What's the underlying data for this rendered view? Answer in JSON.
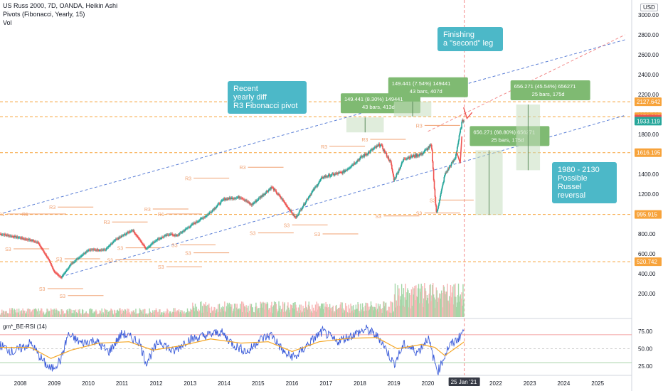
{
  "header": {
    "title": "US Russ 2000, 7D, OANDA, Heikin Ashi",
    "pivots": "Pivots (Fibonacci, Yearly, 15)",
    "vol": "Vol"
  },
  "currency": "USD",
  "callouts": {
    "recent": "Recent\nyearly diff\nR3 Fibonacci pivot",
    "finishing": "Finishing\na \"second\" leg",
    "reversal": "1980 - 2130\nPossible Russel\nreversal"
  },
  "colors": {
    "up": "#26a69a",
    "down": "#ef5350",
    "callout": "#4cb8c8",
    "hline": "#f7a33b",
    "trend_blue": "#5b7fd6",
    "trend_red": "#f28a8a",
    "rsi": "#3a5bd9",
    "rsi_ma": "#f5a623",
    "pivot": "#f0a070"
  },
  "chart_data": [
    {
      "type": "candlestick",
      "title": "US Russ 2000, 7D, OANDA, Heikin Ashi",
      "x_labels": [
        "2008",
        "2009",
        "2010",
        "2011",
        "2012",
        "2013",
        "2014",
        "2015",
        "2016",
        "2017",
        "2018",
        "2019",
        "2020",
        "25 Jan '21",
        "2022",
        "2023",
        "2024",
        "2025"
      ],
      "x_label_years": [
        2008,
        2009,
        2010,
        2011,
        2012,
        2013,
        2014,
        2015,
        2016,
        2017,
        2018,
        2019,
        2020,
        2021.07,
        2022,
        2023,
        2024,
        2025
      ],
      "y_ticks": [
        200,
        400,
        600,
        800,
        1000,
        1200,
        1400,
        1600,
        1800,
        2000,
        2200,
        2400,
        2600,
        2800,
        3000
      ],
      "ylim": [
        90,
        3060
      ],
      "price_path": [
        [
          2007.4,
          800
        ],
        [
          2008.0,
          760
        ],
        [
          2008.5,
          720
        ],
        [
          2008.8,
          560
        ],
        [
          2009.0,
          420
        ],
        [
          2009.2,
          360
        ],
        [
          2009.5,
          500
        ],
        [
          2010.0,
          640
        ],
        [
          2010.5,
          640
        ],
        [
          2010.8,
          740
        ],
        [
          2011.3,
          840
        ],
        [
          2011.7,
          650
        ],
        [
          2012.0,
          740
        ],
        [
          2012.4,
          800
        ],
        [
          2012.6,
          780
        ],
        [
          2013.0,
          880
        ],
        [
          2013.5,
          990
        ],
        [
          2014.0,
          1150
        ],
        [
          2014.5,
          1170
        ],
        [
          2014.8,
          1090
        ],
        [
          2015.4,
          1270
        ],
        [
          2015.7,
          1150
        ],
        [
          2016.1,
          960
        ],
        [
          2016.5,
          1180
        ],
        [
          2016.9,
          1370
        ],
        [
          2017.5,
          1420
        ],
        [
          2018.0,
          1560
        ],
        [
          2018.6,
          1700
        ],
        [
          2018.9,
          1520
        ],
        [
          2019.0,
          1340
        ],
        [
          2019.3,
          1560
        ],
        [
          2019.8,
          1600
        ],
        [
          2020.1,
          1690
        ],
        [
          2020.2,
          1200
        ],
        [
          2020.25,
          1000
        ],
        [
          2020.5,
          1400
        ],
        [
          2020.8,
          1560
        ],
        [
          2021.0,
          1920
        ],
        [
          2021.07,
          1954.78
        ]
      ],
      "price_labels": [
        {
          "text": "2127.642",
          "value": 2127.642,
          "color": "#f7a33b"
        },
        {
          "text": "1978.005",
          "value": 1978.005,
          "color": "#f7a33b"
        },
        {
          "text": "1954.780",
          "value": 1954.78,
          "color": "#ef5350"
        },
        {
          "text": "1933.119",
          "value": 1933.119,
          "color": "#26a69a"
        },
        {
          "text": "1616.195",
          "value": 1616.195,
          "color": "#f7a33b"
        },
        {
          "text": "995.915",
          "value": 995.915,
          "color": "#f7a33b"
        },
        {
          "text": "520.742",
          "value": 520.742,
          "color": "#f7a33b"
        }
      ],
      "horizontal_levels": [
        2127.642,
        1978.005,
        1616.195,
        995.915,
        520.742
      ],
      "pivot_labels": [
        {
          "text": "R1",
          "x": 2007.6,
          "y": 1000
        },
        {
          "text": "R1",
          "x": 2008.3,
          "y": 1000
        },
        {
          "text": "R3",
          "x": 2009.1,
          "y": 1070
        },
        {
          "text": "S3",
          "x": 2007.8,
          "y": 650
        },
        {
          "text": "S3",
          "x": 2008.8,
          "y": 250
        },
        {
          "text": "S3",
          "x": 2009.3,
          "y": 550
        },
        {
          "text": "S3",
          "x": 2009.4,
          "y": 180
        },
        {
          "text": "R3",
          "x": 2010.7,
          "y": 920
        },
        {
          "text": "R3",
          "x": 2011.9,
          "y": 1050
        },
        {
          "text": "R1",
          "x": 2012.3,
          "y": 1000
        },
        {
          "text": "S3",
          "x": 2010.8,
          "y": 540
        },
        {
          "text": "S3",
          "x": 2011.1,
          "y": 660
        },
        {
          "text": "S3",
          "x": 2012.3,
          "y": 470
        },
        {
          "text": "S3",
          "x": 2012.7,
          "y": 690
        },
        {
          "text": "R3",
          "x": 2013.1,
          "y": 1360
        },
        {
          "text": "S3",
          "x": 2013.1,
          "y": 610
        },
        {
          "text": "R3",
          "x": 2014.7,
          "y": 1470
        },
        {
          "text": "S3",
          "x": 2015.0,
          "y": 810
        },
        {
          "text": "S3",
          "x": 2016.0,
          "y": 890
        },
        {
          "text": "S3",
          "x": 2016.9,
          "y": 800
        },
        {
          "text": "R3",
          "x": 2017.1,
          "y": 1680
        },
        {
          "text": "R3",
          "x": 2018.3,
          "y": 1750
        },
        {
          "text": "S3",
          "x": 2018.7,
          "y": 980
        },
        {
          "text": "R3",
          "x": 2019.9,
          "y": 1890
        },
        {
          "text": "S3",
          "x": 2019.9,
          "y": 1010
        },
        {
          "text": "S3",
          "x": 2020.3,
          "y": 1140
        }
      ],
      "measure_boxes": [
        {
          "text": "149.441 (8.30%) 149441",
          "sub": "43 bars, 413d",
          "x0": 2017.6,
          "x1": 2018.7,
          "y0": 1820,
          "y1": 1970
        },
        {
          "text": "149.441 (7.54%) 149441",
          "sub": "43 bars, 407d",
          "x0": 2019.0,
          "x1": 2020.1,
          "y0": 1980,
          "y1": 2130
        },
        {
          "text": "656.271 (68.80%) 656271",
          "sub": "25 bars, 175d",
          "x0": 2021.4,
          "x1": 2022.2,
          "y0": 990,
          "y1": 1640
        },
        {
          "text": "656.271 (45.54%) 656271",
          "sub": "25 bars, 175d",
          "x0": 2022.6,
          "x1": 2023.3,
          "y0": 1440,
          "y1": 2100
        }
      ],
      "trend_lines": [
        {
          "color": "#5b7fd6",
          "from": [
            2007.5,
            1010
          ],
          "to": [
            2025.8,
            2750
          ]
        },
        {
          "color": "#5b7fd6",
          "from": [
            2009.2,
            370
          ],
          "to": [
            2025.8,
            1990
          ]
        },
        {
          "color": "#f28a8a",
          "from": [
            2020.0,
            1830
          ],
          "to": [
            2025.8,
            2800
          ]
        }
      ]
    },
    {
      "type": "bar",
      "title": "Vol",
      "note": "weekly volume histogram, rising sharply after 2019"
    },
    {
      "type": "line",
      "title": "gm*_BE-RSI (14)",
      "y_ticks": [
        25,
        50,
        75
      ],
      "ylim": [
        10,
        90
      ],
      "levels": [
        30,
        50,
        70
      ],
      "rsi_path": [
        [
          2007.4,
          55
        ],
        [
          2007.8,
          45
        ],
        [
          2008.3,
          58
        ],
        [
          2008.7,
          30
        ],
        [
          2008.9,
          20
        ],
        [
          2009.2,
          35
        ],
        [
          2009.4,
          70
        ],
        [
          2009.8,
          58
        ],
        [
          2010.2,
          62
        ],
        [
          2010.6,
          45
        ],
        [
          2011.0,
          72
        ],
        [
          2011.5,
          60
        ],
        [
          2011.7,
          30
        ],
        [
          2012.1,
          62
        ],
        [
          2012.5,
          45
        ],
        [
          2012.9,
          62
        ],
        [
          2013.4,
          68
        ],
        [
          2013.9,
          74
        ],
        [
          2014.3,
          55
        ],
        [
          2014.7,
          45
        ],
        [
          2015.0,
          62
        ],
        [
          2015.4,
          70
        ],
        [
          2015.8,
          42
        ],
        [
          2016.1,
          38
        ],
        [
          2016.5,
          58
        ],
        [
          2016.9,
          75
        ],
        [
          2017.3,
          60
        ],
        [
          2017.8,
          70
        ],
        [
          2018.2,
          78
        ],
        [
          2018.6,
          64
        ],
        [
          2019.0,
          28
        ],
        [
          2019.3,
          56
        ],
        [
          2019.7,
          45
        ],
        [
          2020.0,
          66
        ],
        [
          2020.2,
          30
        ],
        [
          2020.3,
          18
        ],
        [
          2020.6,
          52
        ],
        [
          2020.9,
          65
        ],
        [
          2021.07,
          78
        ]
      ],
      "ma_path": [
        [
          2007.4,
          52
        ],
        [
          2008.3,
          52
        ],
        [
          2008.9,
          36
        ],
        [
          2009.5,
          48
        ],
        [
          2010.3,
          58
        ],
        [
          2011.2,
          60
        ],
        [
          2011.9,
          48
        ],
        [
          2012.7,
          54
        ],
        [
          2013.6,
          64
        ],
        [
          2014.5,
          58
        ],
        [
          2015.3,
          60
        ],
        [
          2016.0,
          46
        ],
        [
          2016.8,
          60
        ],
        [
          2017.7,
          65
        ],
        [
          2018.5,
          66
        ],
        [
          2019.1,
          50
        ],
        [
          2019.8,
          56
        ],
        [
          2020.2,
          52
        ],
        [
          2020.5,
          40
        ],
        [
          2020.9,
          54
        ],
        [
          2021.07,
          60
        ]
      ]
    }
  ]
}
